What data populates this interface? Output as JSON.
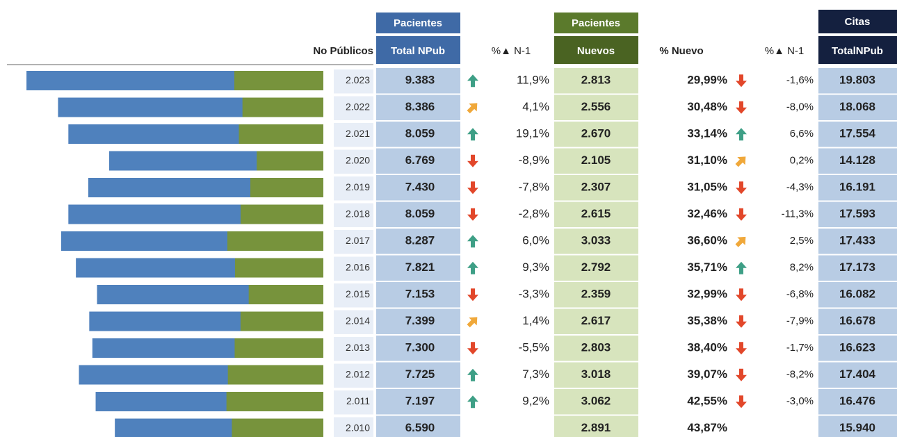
{
  "table": {
    "group_headers": [
      "Pacientes",
      "Pacientes",
      "Citas"
    ],
    "headers": [
      "No Públicos",
      "Total NPub",
      "%▲ N-1",
      "Nuevos",
      "% Nuevo",
      "%▲ N-1",
      "TotalNPub"
    ],
    "rows": [
      [
        "2.023",
        "9.383",
        "11,9%",
        "2.813",
        "29,99%",
        "-1,6%",
        "19.803"
      ],
      [
        "2.022",
        "8.386",
        "4,1%",
        "2.556",
        "30,48%",
        "-8,0%",
        "18.068"
      ],
      [
        "2.021",
        "8.059",
        "19,1%",
        "2.670",
        "33,14%",
        "6,6%",
        "17.554"
      ],
      [
        "2.020",
        "6.769",
        "-8,9%",
        "2.105",
        "31,10%",
        "0,2%",
        "14.128"
      ],
      [
        "2.019",
        "7.430",
        "-7,8%",
        "2.307",
        "31,05%",
        "-4,3%",
        "16.191"
      ],
      [
        "2.018",
        "8.059",
        "-2,8%",
        "2.615",
        "32,46%",
        "-11,3%",
        "17.593"
      ],
      [
        "2.017",
        "8.287",
        "6,0%",
        "3.033",
        "36,60%",
        "2,5%",
        "17.433"
      ],
      [
        "2.016",
        "7.821",
        "9,3%",
        "2.792",
        "35,71%",
        "8,2%",
        "17.173"
      ],
      [
        "2.015",
        "7.153",
        "-3,3%",
        "2.359",
        "32,99%",
        "-6,8%",
        "16.082"
      ],
      [
        "2.014",
        "7.399",
        "1,4%",
        "2.617",
        "35,38%",
        "-7,9%",
        "16.678"
      ],
      [
        "2.013",
        "7.300",
        "-5,5%",
        "2.803",
        "38,40%",
        "-1,7%",
        "16.623"
      ],
      [
        "2.012",
        "7.725",
        "7,3%",
        "3.018",
        "39,07%",
        "-8,2%",
        "17.404"
      ],
      [
        "2.011",
        "7.197",
        "9,2%",
        "3.062",
        "42,55%",
        "-3,0%",
        "16.476"
      ],
      [
        "2.010",
        "6.590",
        null,
        "2.891",
        "43,87%",
        null,
        "15.940"
      ]
    ]
  }
}
